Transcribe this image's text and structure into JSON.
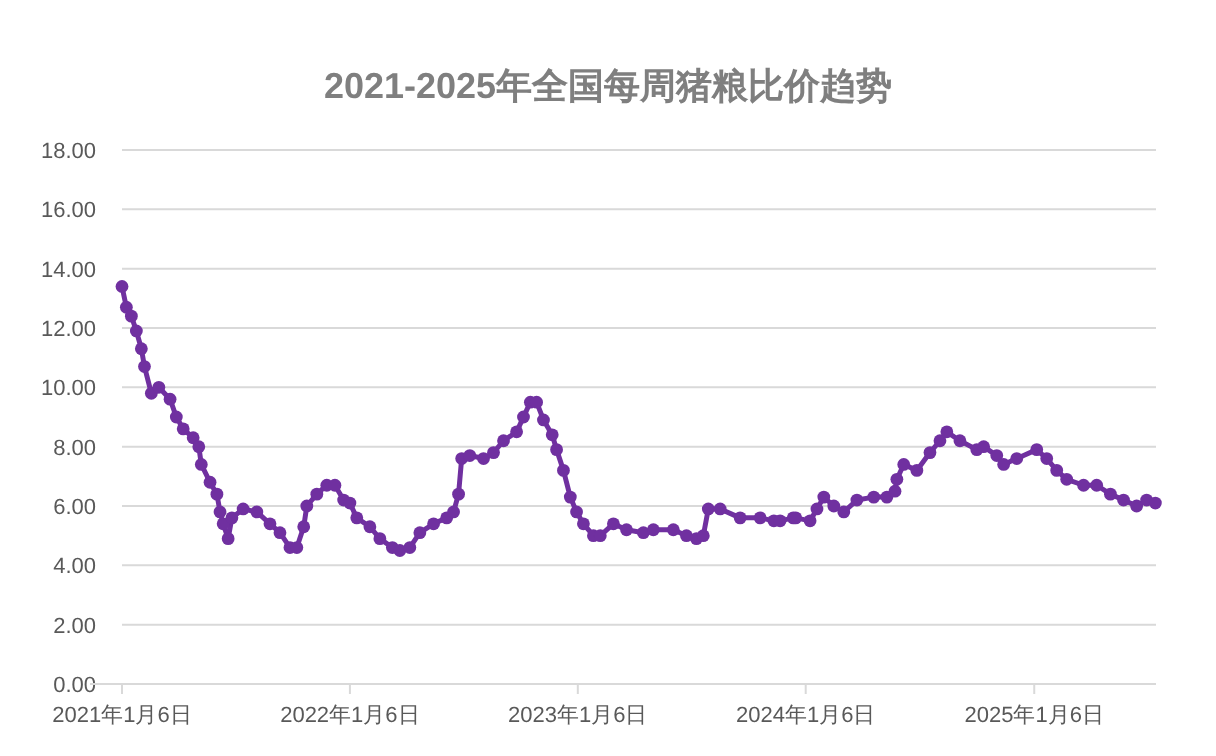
{
  "chart_data": {
    "type": "line",
    "title": "2021-2025年全国每周猪粮比价趋势",
    "marker": "circle",
    "grid": "y",
    "line_style": "solid",
    "xlim": [
      "2021-01-06",
      "2025-07-20"
    ],
    "xticks": [
      {
        "value": "2021-01-06",
        "label": "2021年1月6日"
      },
      {
        "value": "2022-01-06",
        "label": "2022年1月6日"
      },
      {
        "value": "2023-01-06",
        "label": "2023年1月6日"
      },
      {
        "value": "2024-01-06",
        "label": "2024年1月6日"
      },
      {
        "value": "2025-01-06",
        "label": "2025年1月6日"
      }
    ],
    "ylim": [
      0,
      18
    ],
    "yticks": [
      {
        "value": 0,
        "label": "0.00"
      },
      {
        "value": 2,
        "label": "2.00"
      },
      {
        "value": 4,
        "label": "4.00"
      },
      {
        "value": 6,
        "label": "6.00"
      },
      {
        "value": 8,
        "label": "8.00"
      },
      {
        "value": 10,
        "label": "10.00"
      },
      {
        "value": 12,
        "label": "12.00"
      },
      {
        "value": 14,
        "label": "14.00"
      },
      {
        "value": 16,
        "label": "16.00"
      },
      {
        "value": 18,
        "label": "18.00"
      }
    ],
    "series": [
      {
        "color": "#7030a0",
        "x": [
          "2021-01-06",
          "2021-01-13",
          "2021-01-21",
          "2021-01-29",
          "2021-02-06",
          "2021-02-11",
          "2021-02-22",
          "2021-03-06",
          "2021-03-24",
          "2021-04-03",
          "2021-04-14",
          "2021-04-30",
          "2021-05-09",
          "2021-05-13",
          "2021-05-27",
          "2021-06-07",
          "2021-06-12",
          "2021-06-17",
          "2021-06-25",
          "2021-07-01",
          "2021-07-19",
          "2021-08-10",
          "2021-08-31",
          "2021-09-16",
          "2021-10-02",
          "2021-10-13",
          "2021-10-24",
          "2021-10-29",
          "2021-11-14",
          "2021-11-30",
          "2021-12-13",
          "2021-12-27",
          "2022-01-06",
          "2022-01-17",
          "2022-02-07",
          "2022-02-23",
          "2022-03-15",
          "2022-03-27",
          "2022-04-12",
          "2022-04-28",
          "2022-05-20",
          "2022-06-10",
          "2022-06-21",
          "2022-06-29",
          "2022-07-04",
          "2022-07-17",
          "2022-08-08",
          "2022-08-24",
          "2022-09-09",
          "2022-09-30",
          "2022-10-11",
          "2022-10-22",
          "2022-11-01",
          "2022-11-12",
          "2022-11-26",
          "2022-12-03",
          "2022-12-14",
          "2022-12-25",
          "2023-01-04",
          "2023-01-15",
          "2023-01-31",
          "2023-02-11",
          "2023-03-04",
          "2023-03-25",
          "2023-04-21",
          "2023-05-07",
          "2023-06-08",
          "2023-06-29",
          "2023-07-15",
          "2023-07-26",
          "2023-08-03",
          "2023-08-22",
          "2023-09-23",
          "2023-10-25",
          "2023-11-16",
          "2023-11-26",
          "2023-12-17",
          "2023-12-21",
          "2024-01-13",
          "2024-01-24",
          "2024-02-04",
          "2024-02-20",
          "2024-03-07",
          "2024-03-28",
          "2024-04-24",
          "2024-05-15",
          "2024-05-28",
          "2024-05-31",
          "2024-06-11",
          "2024-07-02",
          "2024-07-23",
          "2024-08-08",
          "2024-08-19",
          "2024-09-09",
          "2024-10-06",
          "2024-10-17",
          "2024-11-07",
          "2024-11-18",
          "2024-12-09",
          "2025-01-10",
          "2025-01-26",
          "2025-02-11",
          "2025-02-27",
          "2025-03-26",
          "2025-04-16",
          "2025-05-08",
          "2025-05-29",
          "2025-06-19",
          "2025-07-05",
          "2025-07-19"
        ],
        "values": [
          13.4,
          12.7,
          12.4,
          11.9,
          11.3,
          10.7,
          9.8,
          10.0,
          9.6,
          9.0,
          8.6,
          8.3,
          8.0,
          7.4,
          6.8,
          6.4,
          5.8,
          5.4,
          4.9,
          5.6,
          5.9,
          5.8,
          5.4,
          5.1,
          4.6,
          4.6,
          5.3,
          6.0,
          6.4,
          6.7,
          6.7,
          6.2,
          6.1,
          5.6,
          5.3,
          4.9,
          4.6,
          4.5,
          4.6,
          5.1,
          5.4,
          5.6,
          5.8,
          6.4,
          7.6,
          7.7,
          7.6,
          7.8,
          8.2,
          8.5,
          9.0,
          9.5,
          9.5,
          8.9,
          8.4,
          7.9,
          7.2,
          6.3,
          5.8,
          5.4,
          5.0,
          5.0,
          5.4,
          5.2,
          5.1,
          5.2,
          5.2,
          5.0,
          4.9,
          5.0,
          5.9,
          5.9,
          5.6,
          5.6,
          5.5,
          5.5,
          5.6,
          5.6,
          5.5,
          5.9,
          6.3,
          6.0,
          5.8,
          6.2,
          6.3,
          6.3,
          6.5,
          6.9,
          7.4,
          7.2,
          7.8,
          8.2,
          8.5,
          8.2,
          7.9,
          8.0,
          7.7,
          7.4,
          7.6,
          7.9,
          7.6,
          7.2,
          6.9,
          6.7,
          6.7,
          6.4,
          6.2,
          6.0,
          6.2,
          6.1
        ]
      }
    ]
  }
}
